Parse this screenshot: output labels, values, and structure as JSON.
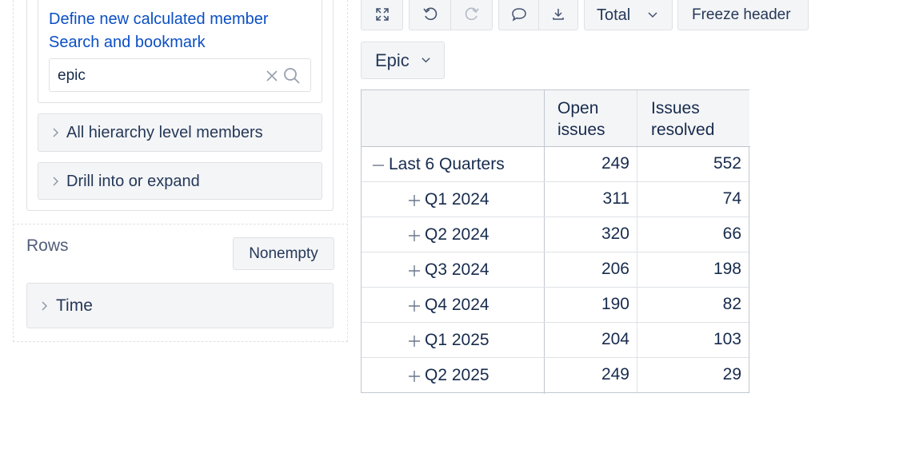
{
  "measures": {
    "define_link": "Define new calculated member",
    "bookmark_link": "Search and bookmark",
    "search": {
      "value": "epic",
      "placeholder": ""
    },
    "sections": [
      {
        "label": "All hierarchy level members"
      },
      {
        "label": "Drill into or expand"
      }
    ]
  },
  "rows": {
    "title": "Rows",
    "nonempty_label": "Nonempty",
    "dimension_label": "Time"
  },
  "toolbar": {
    "total_label": "Total",
    "freeze_label": "Freeze header",
    "icons": [
      "fullscreen-icon",
      "undo-icon",
      "redo-icon",
      "comment-icon",
      "download-icon",
      "chevron-down-icon"
    ]
  },
  "column_dimension": {
    "label": "Epic"
  },
  "table": {
    "headers": [
      "Open issues",
      "Issues resolved"
    ],
    "rows": [
      {
        "label": "Last 6 Quarters",
        "toggle": "collapse",
        "open": "249",
        "resolved": "552"
      },
      {
        "label": "Q1 2024",
        "toggle": "expand",
        "open": "311",
        "resolved": "74"
      },
      {
        "label": "Q2 2024",
        "toggle": "expand",
        "open": "320",
        "resolved": "66"
      },
      {
        "label": "Q3 2024",
        "toggle": "expand",
        "open": "206",
        "resolved": "198"
      },
      {
        "label": "Q4 2024",
        "toggle": "expand",
        "open": "190",
        "resolved": "82"
      },
      {
        "label": "Q1 2025",
        "toggle": "expand",
        "open": "204",
        "resolved": "103"
      },
      {
        "label": "Q2 2025",
        "toggle": "expand",
        "open": "249",
        "resolved": "29"
      }
    ]
  },
  "colors": {
    "link": "#0b4fc4",
    "border": "#dfe1e6",
    "header_bg": "#f4f5f7",
    "text": "#172b4d"
  }
}
